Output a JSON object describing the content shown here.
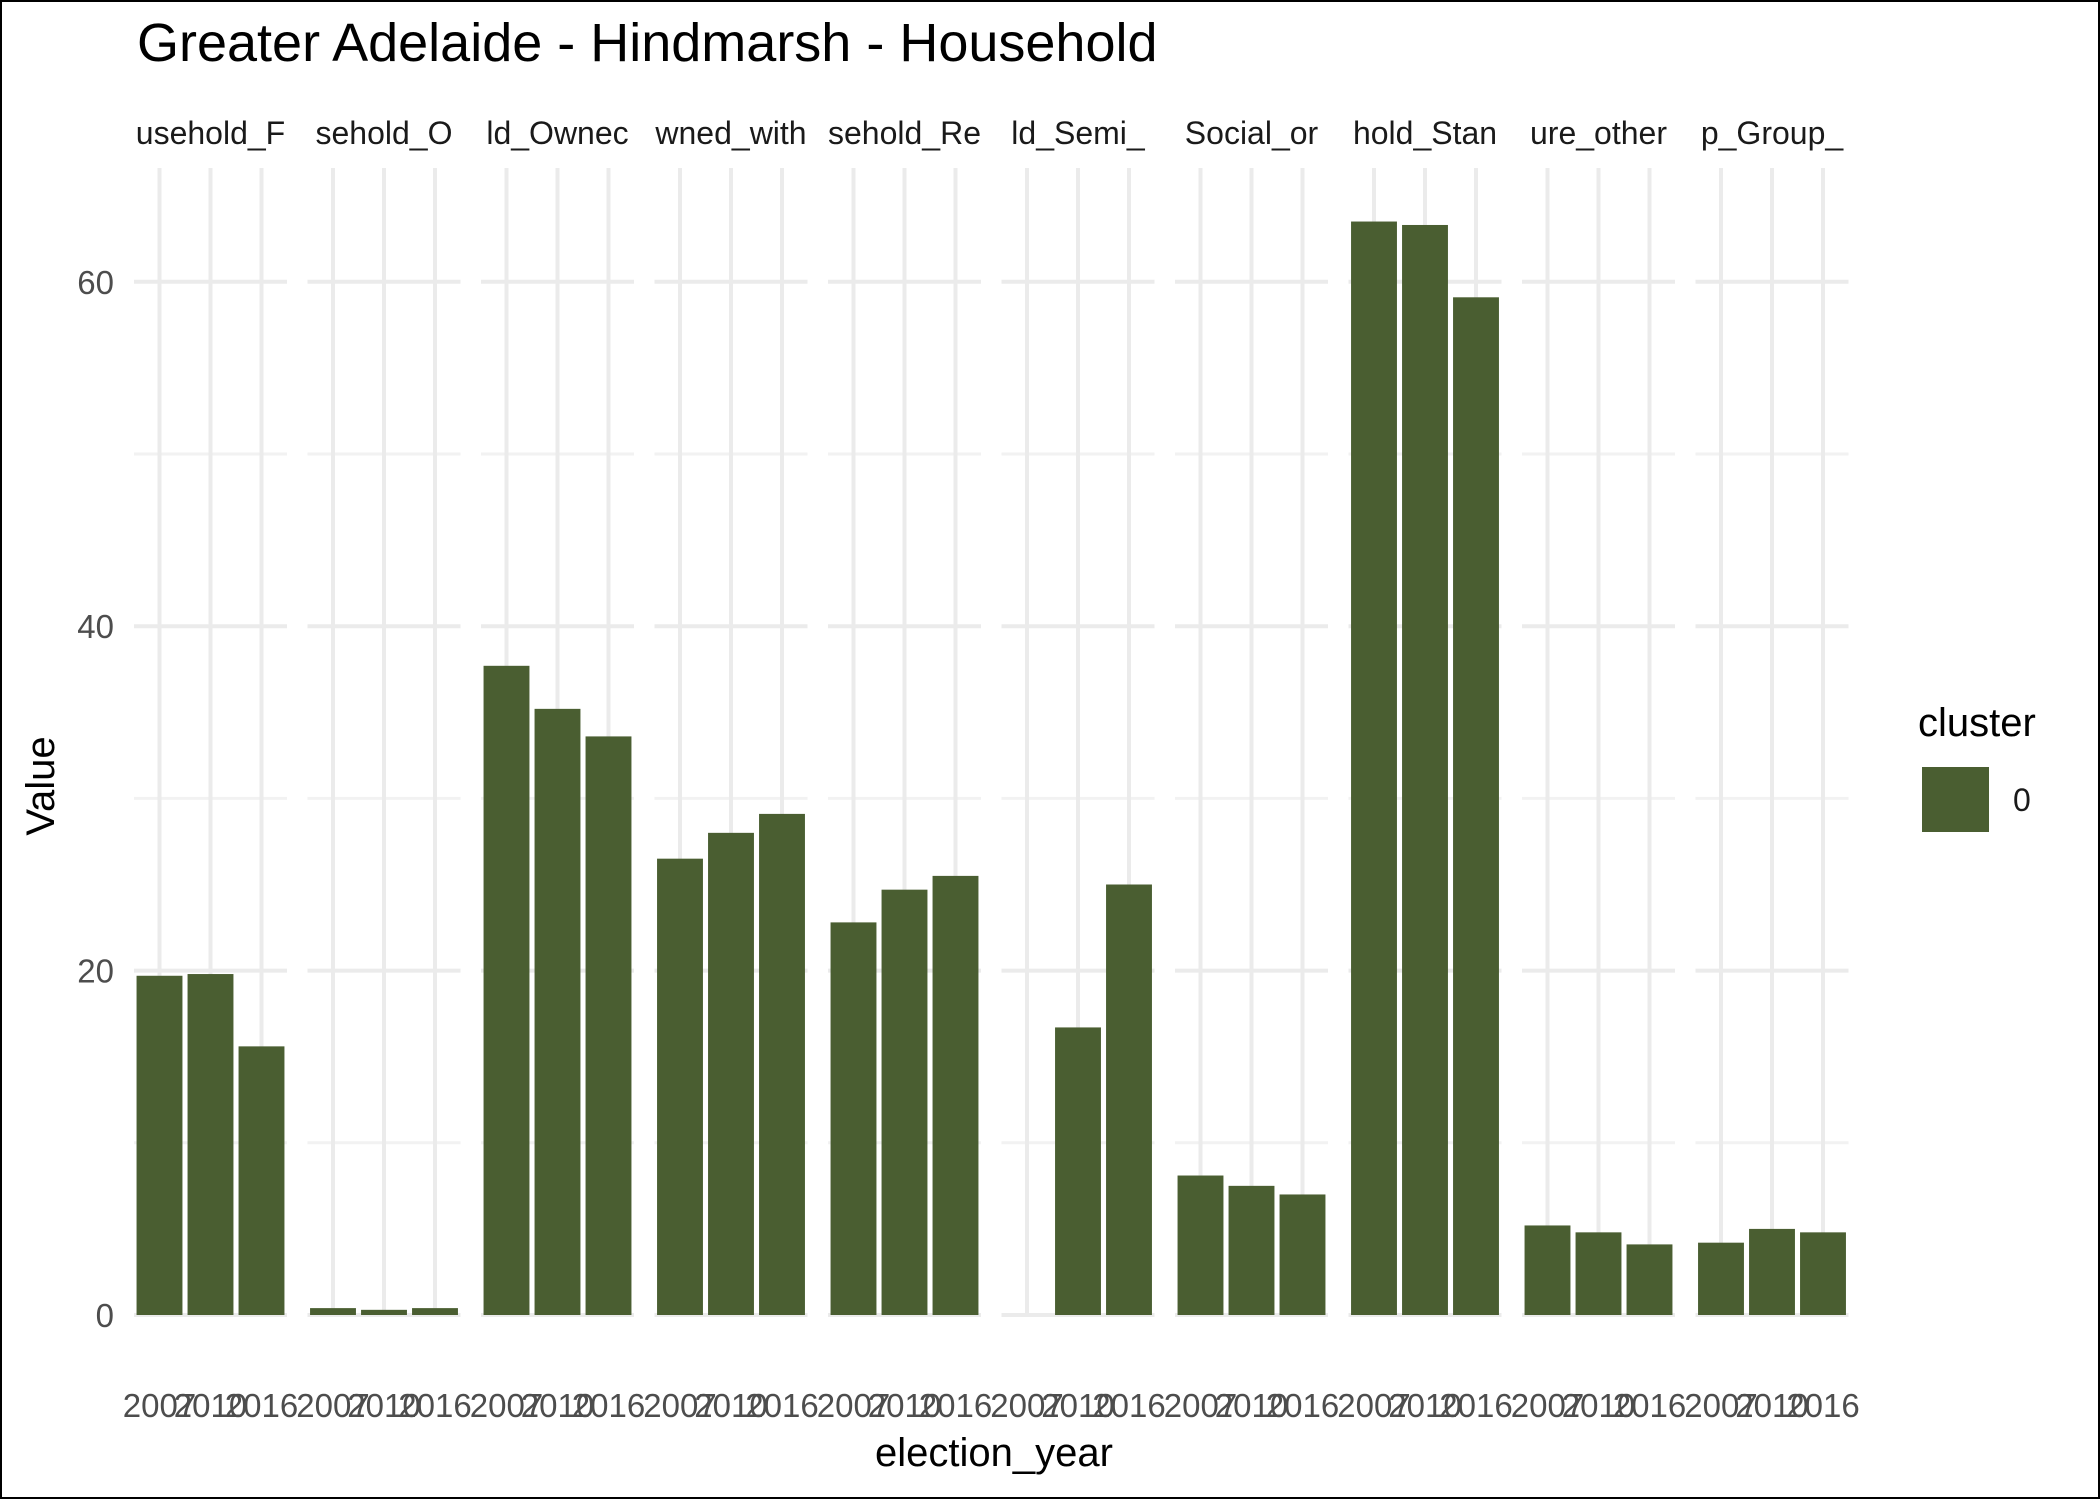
{
  "chart_data": {
    "type": "bar",
    "title": "Greater Adelaide - Hindmarsh - Household",
    "xlabel": "election_year",
    "ylabel": "Value",
    "ylim": [
      0,
      66
    ],
    "y_ticks": [
      0,
      20,
      40,
      60
    ],
    "x_categories": [
      "2007",
      "2010",
      "2016"
    ],
    "grid": true,
    "legend": {
      "title": "cluster",
      "position": "right",
      "entries": [
        {
          "label": "0",
          "color": "#4a5e31"
        }
      ]
    },
    "bar_color": "#4a5e31",
    "facets": [
      {
        "label": "usehold_F",
        "values": [
          19.7,
          19.8,
          15.6
        ]
      },
      {
        "label": "sehold_O",
        "values": [
          0.4,
          0.3,
          0.4
        ]
      },
      {
        "label": "ld_Ownec",
        "values": [
          37.7,
          35.2,
          33.6
        ]
      },
      {
        "label": "wned_with",
        "values": [
          26.5,
          28.0,
          29.1
        ]
      },
      {
        "label": "sehold_Re",
        "values": [
          22.8,
          24.7,
          25.5
        ]
      },
      {
        "label": "ld_Semi_",
        "values": [
          null,
          16.7,
          25.0
        ]
      },
      {
        "label": "Social_or",
        "values": [
          8.1,
          7.5,
          7.0
        ]
      },
      {
        "label": "hold_Stan",
        "values": [
          63.5,
          63.3,
          59.1
        ]
      },
      {
        "label": "ure_other",
        "values": [
          5.2,
          4.8,
          4.1
        ]
      },
      {
        "label": "p_Group_",
        "values": [
          4.2,
          5.0,
          4.8
        ]
      }
    ]
  }
}
